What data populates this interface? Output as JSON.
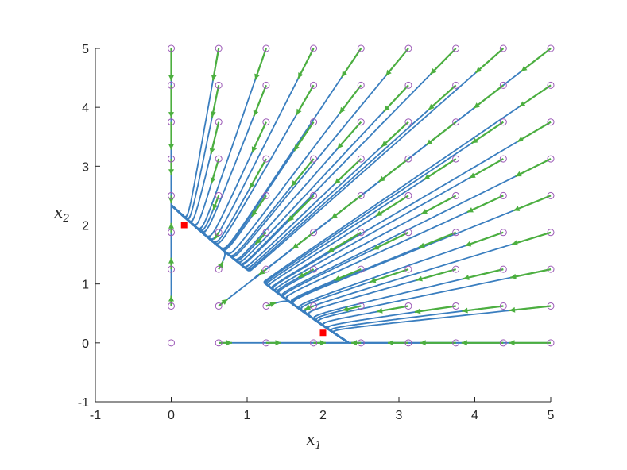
{
  "chart_data": {
    "type": "phase-portrait",
    "xlabel": "x",
    "xlabel_sub": "1",
    "ylabel": "x",
    "ylabel_sub": "2",
    "xlim": [
      -1,
      5
    ],
    "ylim": [
      -1,
      5
    ],
    "xticks": [
      -1,
      0,
      1,
      2,
      3,
      4,
      5
    ],
    "yticks": [
      -1,
      0,
      1,
      2,
      3,
      4,
      5
    ],
    "grid": false,
    "grid_points_x": [
      0,
      0.625,
      1.25,
      1.875,
      2.5,
      3.125,
      3.75,
      4.375,
      5
    ],
    "grid_points_y": [
      0,
      0.625,
      1.25,
      1.875,
      2.5,
      3.125,
      3.75,
      4.375,
      5
    ],
    "equilibria": [
      {
        "x": 0.17,
        "y": 2.0
      },
      {
        "x": 2.0,
        "y": 0.17
      }
    ],
    "colors": {
      "trajectory": "#3a7ebf",
      "vector": "#4caf3f",
      "start_marker": "#9b59b6",
      "equilibrium": "#ff0000",
      "axis": "#262626"
    }
  }
}
